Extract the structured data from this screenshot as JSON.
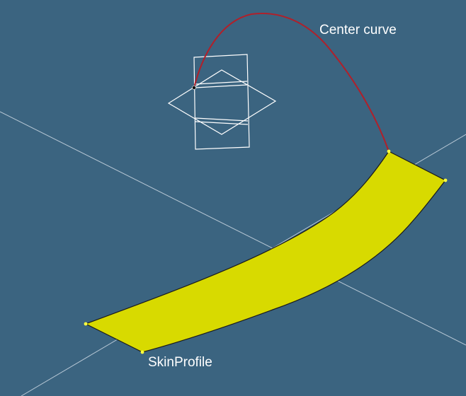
{
  "labels": {
    "center_curve": "Center curve",
    "skin_profile": "SkinProfile"
  },
  "colors": {
    "background": "#3b6480",
    "axis": "#b9c9d6",
    "center_curve": "#b0202a",
    "surface_fill": "#d8da00",
    "surface_edge": "#1a1a1a",
    "vertex": "#ffff40",
    "frame": "#ffffff"
  }
}
